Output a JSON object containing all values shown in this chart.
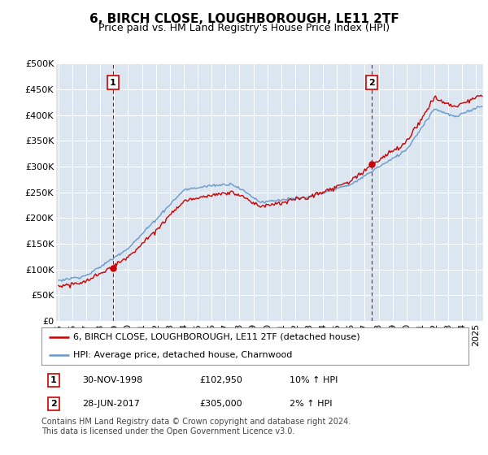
{
  "title": "6, BIRCH CLOSE, LOUGHBOROUGH, LE11 2TF",
  "subtitle": "Price paid vs. HM Land Registry's House Price Index (HPI)",
  "ylim": [
    0,
    500000
  ],
  "yticks": [
    0,
    50000,
    100000,
    150000,
    200000,
    250000,
    300000,
    350000,
    400000,
    450000,
    500000
  ],
  "ytick_labels": [
    "£0",
    "£50K",
    "£100K",
    "£150K",
    "£200K",
    "£250K",
    "£300K",
    "£350K",
    "£400K",
    "£450K",
    "£500K"
  ],
  "xlim_start": 1994.83,
  "xlim_end": 2025.5,
  "xticks": [
    1995,
    1996,
    1997,
    1998,
    1999,
    2000,
    2001,
    2002,
    2003,
    2004,
    2005,
    2006,
    2007,
    2008,
    2009,
    2010,
    2011,
    2012,
    2013,
    2014,
    2015,
    2016,
    2017,
    2018,
    2019,
    2020,
    2021,
    2022,
    2023,
    2024,
    2025
  ],
  "bg_color": "#dce6f1",
  "sale1_x": 1998.917,
  "sale1_y": 102950,
  "sale1_label": "1",
  "sale1_date": "30-NOV-1998",
  "sale1_price": "£102,950",
  "sale1_hpi": "10% ↑ HPI",
  "sale2_x": 2017.493,
  "sale2_y": 305000,
  "sale2_label": "2",
  "sale2_date": "28-JUN-2017",
  "sale2_price": "£305,000",
  "sale2_hpi": "2% ↑ HPI",
  "line_red_color": "#cc0000",
  "line_blue_color": "#6699cc",
  "line_width": 1.0,
  "legend_label_red": "6, BIRCH CLOSE, LOUGHBOROUGH, LE11 2TF (detached house)",
  "legend_label_blue": "HPI: Average price, detached house, Charnwood",
  "footer_text": "Contains HM Land Registry data © Crown copyright and database right 2024.\nThis data is licensed under the Open Government Licence v3.0.",
  "title_fontsize": 11,
  "subtitle_fontsize": 9,
  "tick_fontsize": 8,
  "legend_fontsize": 8,
  "footer_fontsize": 7
}
